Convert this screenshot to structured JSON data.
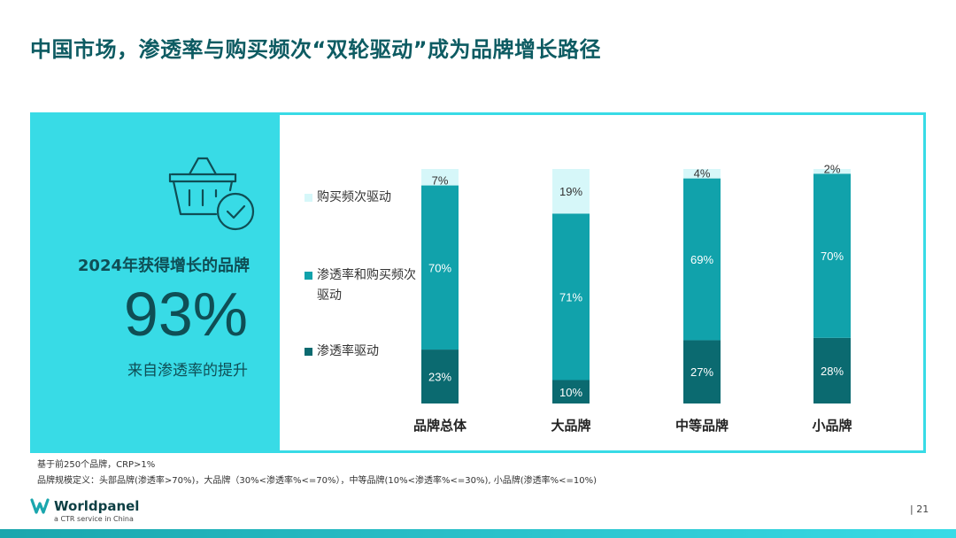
{
  "slide": {
    "title": "中国市场，渗透率与购买频次“双轮驱动”成为品牌增长路径",
    "page_number": "| 21"
  },
  "kpi": {
    "label": "2024年获得增长的品牌",
    "value": "93%",
    "subtext": "来自渗透率的提升",
    "icon": "shopping-basket-check-icon"
  },
  "legend": {
    "items": [
      {
        "label": "购买频次驱动",
        "color": "#d6f7f9"
      },
      {
        "label": "渗透率和购买频次驱动",
        "color": "#11a2ab"
      },
      {
        "label": "渗透率驱动",
        "color": "#0b6a70"
      }
    ]
  },
  "chart_data": {
    "type": "bar",
    "stacked": true,
    "categories": [
      "品牌总体",
      "大品牌",
      "中等品牌",
      "小品牌"
    ],
    "series": [
      {
        "name": "渗透率驱动",
        "values": [
          23,
          10,
          27,
          28
        ],
        "color": "#0b6a70"
      },
      {
        "name": "渗透率和购买频次驱动",
        "values": [
          70,
          71,
          69,
          70
        ],
        "color": "#11a2ab"
      },
      {
        "name": "购买频次驱动",
        "values": [
          7,
          19,
          4,
          2
        ],
        "color": "#d6f7f9"
      }
    ],
    "value_suffix": "%",
    "ylim": [
      0,
      100
    ]
  },
  "footnotes": {
    "line1": "基于前250个品牌，CRP>1%",
    "line2": "品牌规模定义：头部品牌(渗透率>70%)，大品牌（30%<渗透率%<=70%），中等品牌(10%<渗透率%<=30%), 小品牌(渗透率%<=10%)"
  },
  "brand": {
    "name": "Worldpanel",
    "tagline": "a CTR service in China",
    "colors": {
      "primary": "#0d5b62",
      "accent": "#38dbe6"
    }
  }
}
